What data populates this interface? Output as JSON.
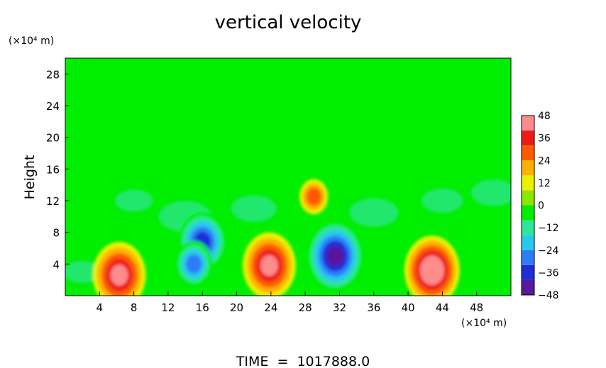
{
  "chart_data": {
    "type": "heatmap",
    "title": "vertical velocity",
    "ylabel": "Height",
    "x_unit": "(×10⁴ m)",
    "y_unit": "(×10⁴ m)",
    "footer": "TIME  =  1017888.0",
    "xlim": [
      0,
      52
    ],
    "ylim": [
      0,
      30
    ],
    "x_ticks": [
      4,
      8,
      12,
      16,
      20,
      24,
      28,
      32,
      36,
      40,
      44,
      48
    ],
    "y_ticks": [
      4,
      8,
      12,
      16,
      20,
      24,
      28
    ],
    "colorbar": {
      "min": -48,
      "max": 48,
      "ticks": [
        48,
        36,
        24,
        12,
        0,
        -12,
        -24,
        -36,
        -48
      ],
      "colors": [
        "#5a189a",
        "#1f2dd6",
        "#2f7df5",
        "#28c9ef",
        "#2ee59a",
        "#00ee00",
        "#8ee600",
        "#e9f200",
        "#ffb000",
        "#ff5a00",
        "#ee1a1a",
        "#ff8c8c"
      ]
    },
    "features": [
      {
        "x": 6.3,
        "y": 2.6,
        "value": 40
      },
      {
        "x": 16.0,
        "y": 6.8,
        "value": -36
      },
      {
        "x": 15.0,
        "y": 4.0,
        "value": -26
      },
      {
        "x": 23.8,
        "y": 3.8,
        "value": 40
      },
      {
        "x": 31.5,
        "y": 5.0,
        "value": -44
      },
      {
        "x": 42.8,
        "y": 3.2,
        "value": 42
      },
      {
        "x": 29.0,
        "y": 12.5,
        "value": 18
      }
    ]
  }
}
